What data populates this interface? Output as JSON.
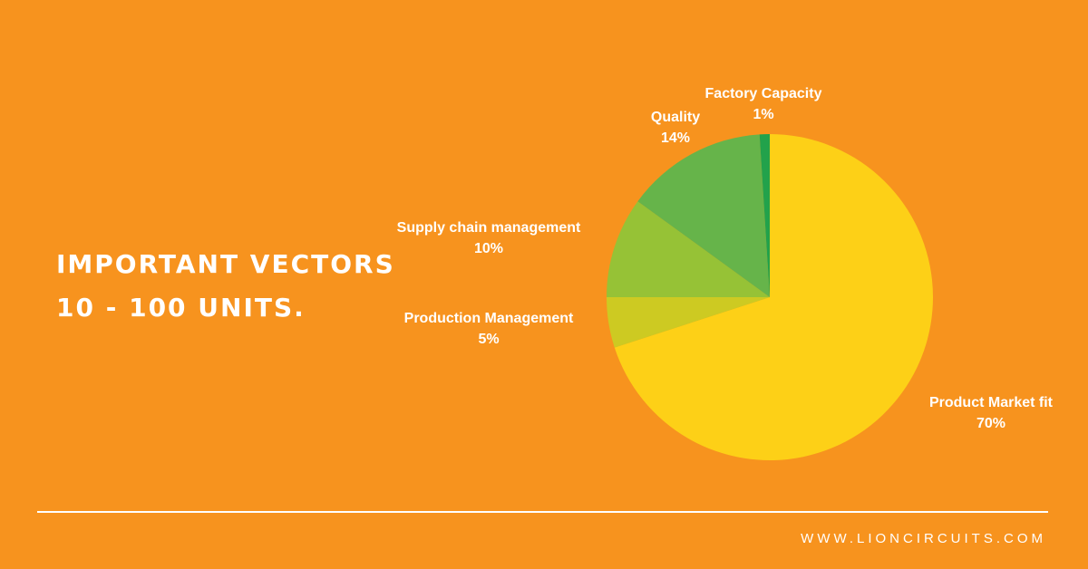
{
  "headline": {
    "line1": "IMPORTANT VECTORS",
    "line2": "10 - 100 UNITS."
  },
  "footer": {
    "url": "WWW.LIONCIRCUITS.COM"
  },
  "chart_data": {
    "type": "pie",
    "title": "",
    "slices": [
      {
        "label": "Product Market fit",
        "value": 70,
        "value_label": "70%",
        "color": "#FDD017"
      },
      {
        "label": "Production Management",
        "value": 5,
        "value_label": "5%",
        "color": "#CDCA22"
      },
      {
        "label": "Supply chain management",
        "value": 10,
        "value_label": "10%",
        "color": "#96C236"
      },
      {
        "label": "Quality",
        "value": 14,
        "value_label": "14%",
        "color": "#66B44A"
      },
      {
        "label": "Factory Capacity",
        "value": 1,
        "value_label": "1%",
        "color": "#22A24B"
      }
    ],
    "start": "top",
    "direction": "clockwise"
  },
  "colors": {
    "background": "#F7931E",
    "text": "#FFFFFF"
  }
}
